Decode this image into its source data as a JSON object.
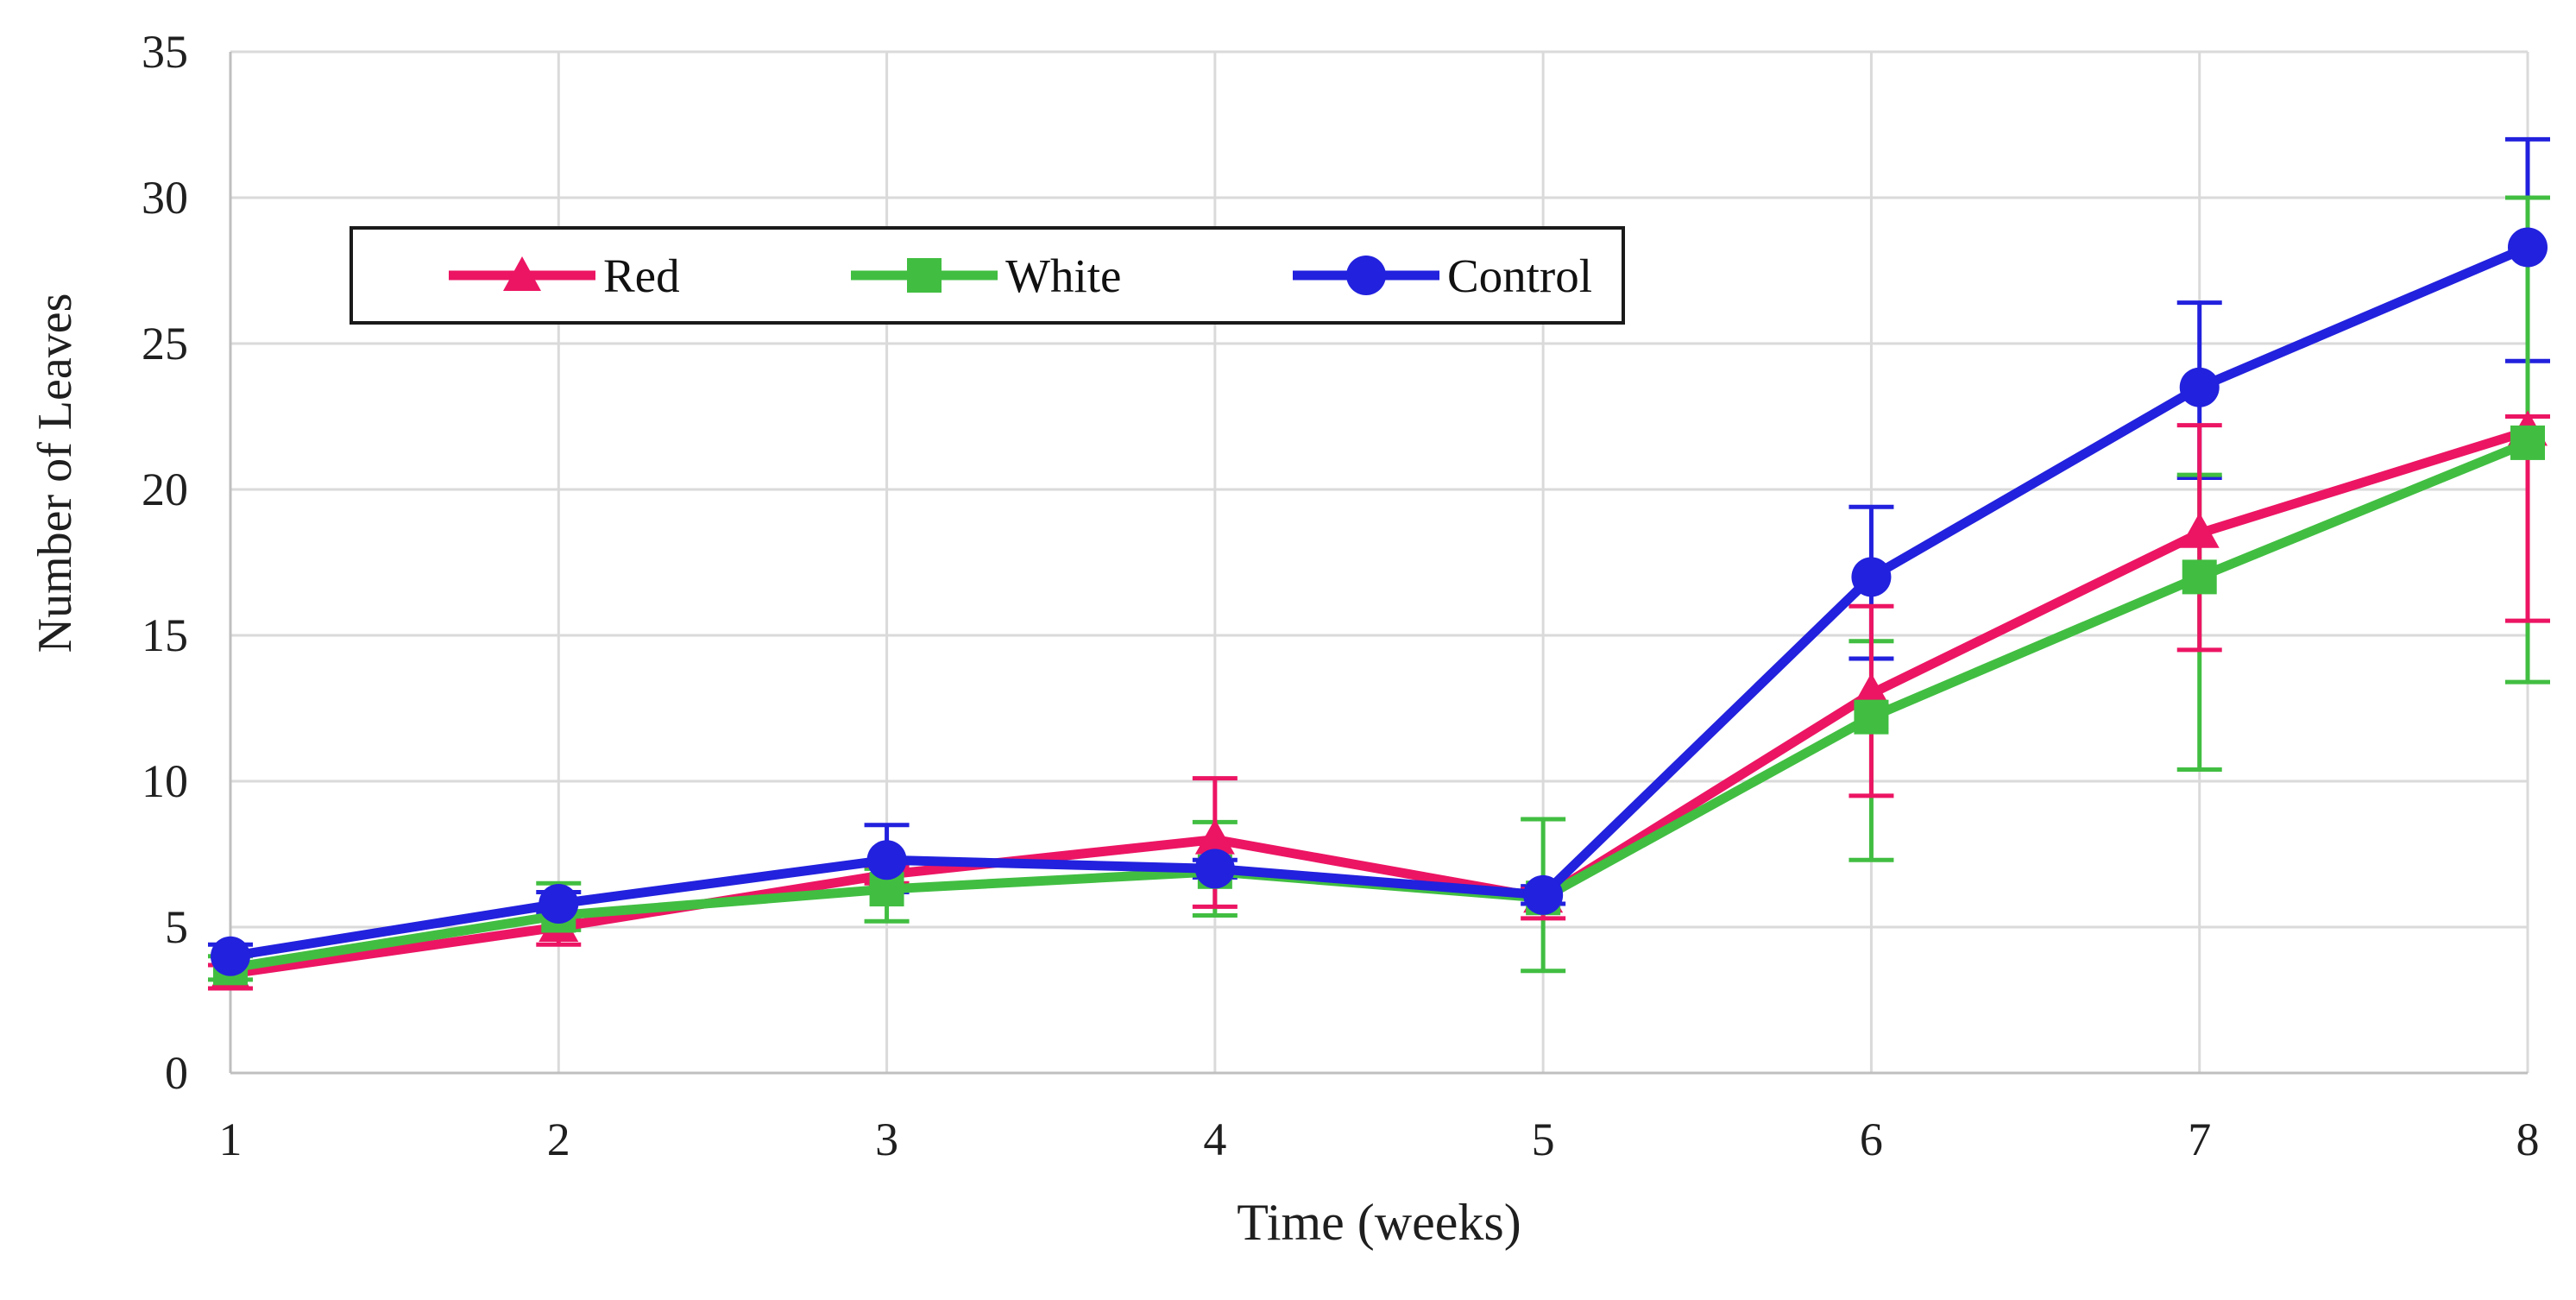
{
  "chart_data": {
    "type": "line",
    "title": "",
    "xlabel": "Time (weeks)",
    "ylabel": "Number of Leaves",
    "x": [
      1,
      2,
      3,
      4,
      5,
      6,
      7,
      8
    ],
    "xticks": [
      1,
      2,
      3,
      4,
      5,
      6,
      7,
      8
    ],
    "yticks": [
      0,
      5,
      10,
      15,
      20,
      25,
      30,
      35
    ],
    "ylim": [
      0,
      35
    ],
    "xlim": [
      1,
      8
    ],
    "grid": true,
    "grid_color": "#DADADA",
    "axis_color": "#BFBFBF",
    "text_color": "#1f1f1f",
    "legend_position": "top-left-inside",
    "legend_border_color": "#1a1a1a",
    "series": [
      {
        "name": "Red",
        "color": "#EC1563",
        "marker": "triangle",
        "values": [
          3.4,
          5.0,
          6.8,
          8.0,
          6.0,
          13.0,
          18.5,
          22.0
        ],
        "err_plus": [
          0.3,
          0.3,
          0.3,
          2.1,
          0.3,
          3.0,
          3.7,
          0.5
        ],
        "err_minus": [
          0.5,
          0.6,
          0.3,
          2.3,
          0.7,
          3.5,
          4.0,
          6.5
        ]
      },
      {
        "name": "White",
        "color": "#41BE41",
        "marker": "square",
        "values": [
          3.6,
          5.4,
          6.3,
          6.9,
          6.0,
          12.2,
          17.0,
          21.6
        ],
        "err_plus": [
          0.4,
          1.1,
          0.7,
          1.7,
          2.7,
          2.6,
          3.5,
          8.4
        ],
        "err_minus": [
          0.4,
          0.5,
          1.1,
          1.5,
          2.5,
          4.9,
          6.6,
          8.2
        ]
      },
      {
        "name": "Control",
        "color": "#2221DD",
        "marker": "circle",
        "values": [
          4.0,
          5.8,
          7.3,
          7.0,
          6.1,
          17.0,
          23.5,
          28.3
        ],
        "err_plus": [
          0.4,
          0.4,
          1.2,
          0.3,
          0.3,
          2.4,
          2.9,
          3.7
        ],
        "err_minus": [
          0.3,
          0.3,
          1.1,
          0.3,
          0.3,
          2.8,
          3.1,
          3.9
        ]
      }
    ]
  }
}
